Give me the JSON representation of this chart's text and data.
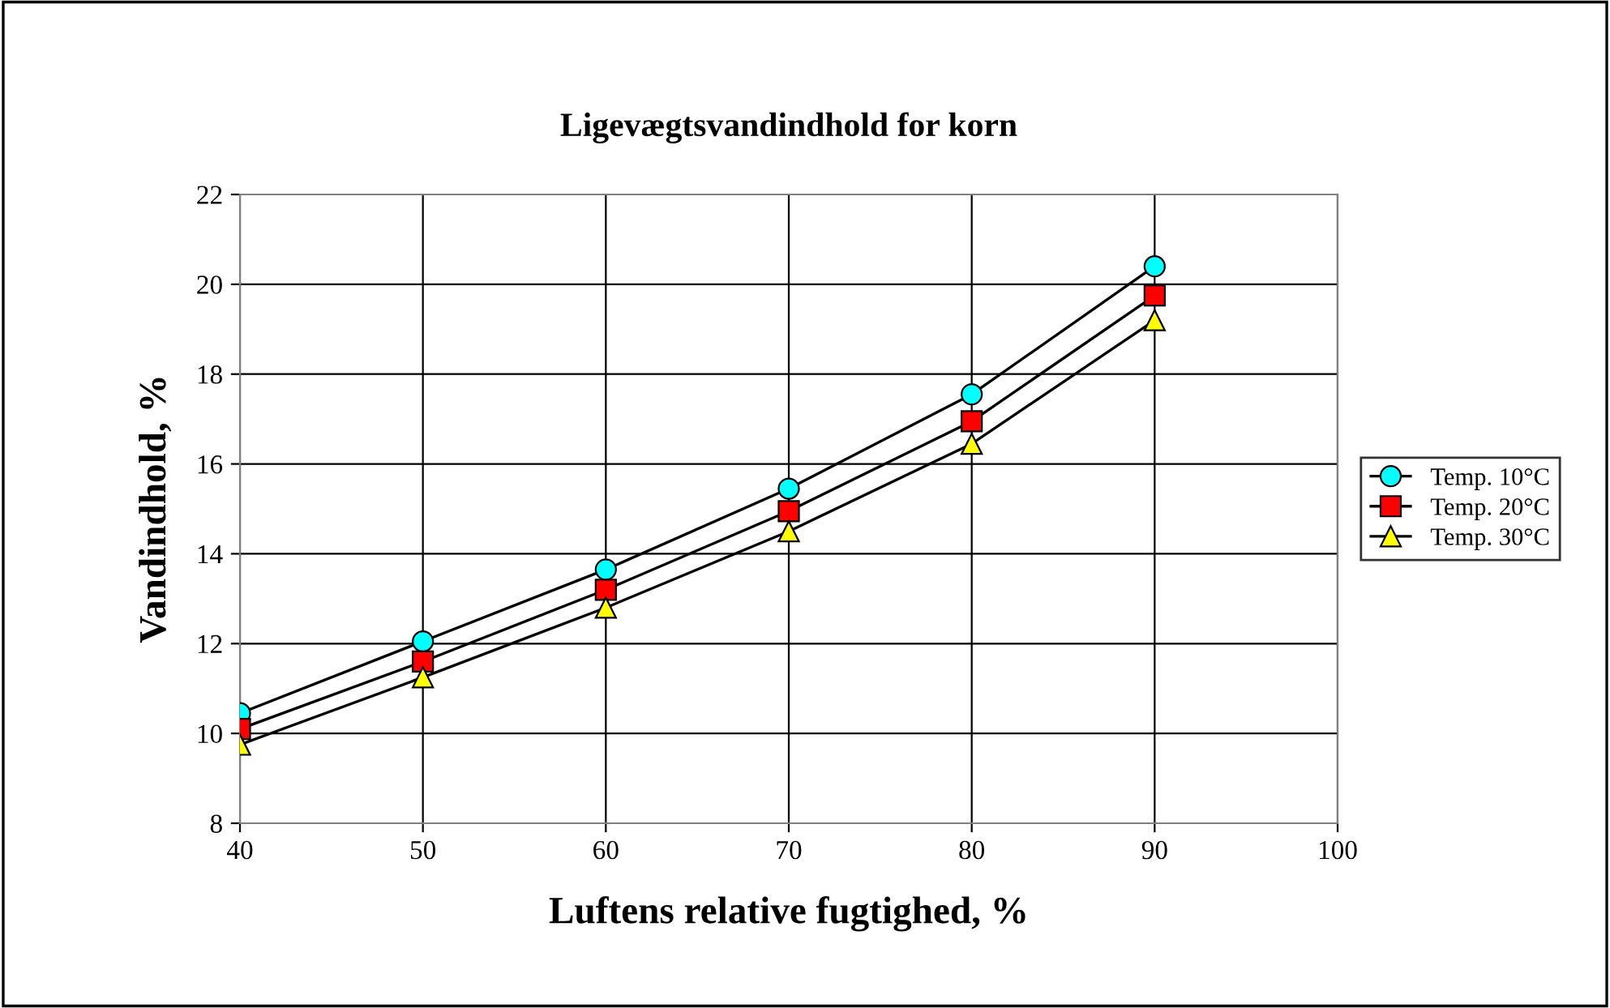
{
  "chart_data": {
    "type": "line",
    "title": "Ligevægtsvandindhold for korn",
    "xlabel": "Luftens relative fugtighed, %",
    "ylabel": "Vandindhold, %",
    "x": [
      40,
      50,
      60,
      70,
      80,
      90
    ],
    "series": [
      {
        "name": "Temp. 10°C",
        "color": "#00ffff",
        "marker": "circle",
        "values": [
          10.45,
          12.05,
          13.65,
          15.45,
          17.55,
          20.4
        ]
      },
      {
        "name": "Temp. 20°C",
        "color": "#ff0000",
        "marker": "square",
        "values": [
          10.1,
          11.6,
          13.2,
          14.95,
          16.95,
          19.75
        ]
      },
      {
        "name": "Temp. 30°C",
        "color": "#ffff00",
        "marker": "triangle",
        "values": [
          9.75,
          11.25,
          12.8,
          14.5,
          16.45,
          19.2
        ]
      }
    ],
    "xlim": [
      40,
      100
    ],
    "xticks": [
      40,
      50,
      60,
      70,
      80,
      90,
      100
    ],
    "ylim": [
      8,
      22
    ],
    "yticks": [
      8,
      10,
      12,
      14,
      16,
      18,
      20,
      22
    ],
    "grid": true,
    "legend": "right"
  }
}
